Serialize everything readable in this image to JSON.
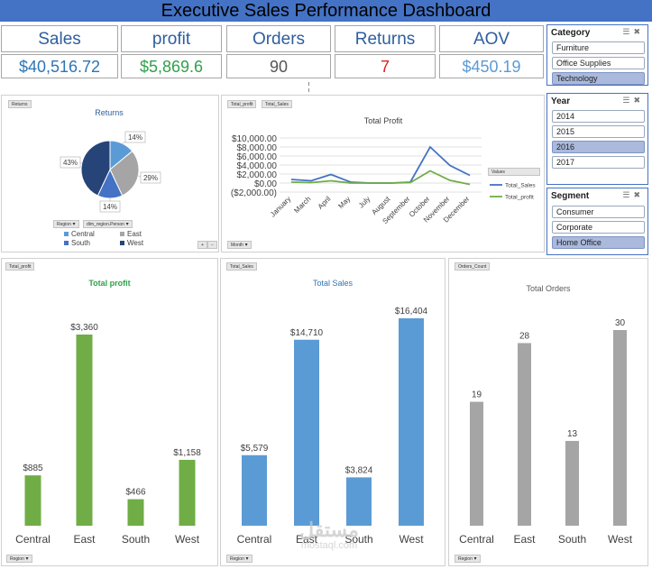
{
  "title": "Executive Sales Performance Dashboard",
  "kpis": {
    "sales": {
      "label": "Sales",
      "value": "$40,516.72",
      "color": "#2e75b6"
    },
    "profit": {
      "label": "profit",
      "value": "$5,869.6",
      "color": "#2fa14a"
    },
    "orders": {
      "label": "Orders",
      "value": "90",
      "color": "#555555"
    },
    "returns": {
      "label": "Returns",
      "value": "7",
      "color": "#e0201b"
    },
    "aov": {
      "label": "AOV",
      "value": "$450.19",
      "color": "#5b9bd5"
    }
  },
  "slicers": {
    "category": {
      "title": "Category",
      "items": [
        "Furniture",
        "Office Supplies",
        "Technology"
      ],
      "selected": [
        2
      ]
    },
    "year": {
      "title": "Year",
      "items": [
        "2014",
        "2015",
        "2016",
        "2017"
      ],
      "selected": [
        2
      ]
    },
    "segment": {
      "title": "Segment",
      "items": [
        "Consumer",
        "Corporate",
        "Home Office"
      ],
      "selected": [
        2
      ]
    }
  },
  "returns_panel": {
    "tag": "Returns",
    "filter_region": "Region",
    "filter_person": "dim_region.Person"
  },
  "profit_trend_panel": {
    "tags": [
      "Total_profit",
      "Total_Sales"
    ],
    "legend_title": "Values",
    "filter_month": "Month"
  },
  "bottom_panels": {
    "profit": {
      "tag": "Total_profit",
      "filter": "Region"
    },
    "sales": {
      "tag": "Total_Sales",
      "filter": "Region"
    },
    "orders": {
      "tag": "Orders_Count",
      "filter": "Region"
    }
  },
  "watermark": {
    "arabic": "مستقل",
    "latin": "mostaql.com"
  },
  "chart_data": [
    {
      "type": "pie",
      "title": "Returns",
      "categories": [
        "Central",
        "East",
        "South",
        "West"
      ],
      "values": [
        14,
        29,
        14,
        43
      ],
      "data_labels": [
        "14%",
        "29%",
        "14%",
        "43%"
      ],
      "colors": [
        "#5b9bd5",
        "#a5a5a5",
        "#4472c4",
        "#264478"
      ],
      "legend": "bottom"
    },
    {
      "type": "line",
      "title": "Total Profit",
      "x": [
        "January",
        "March",
        "April",
        "May",
        "July",
        "August",
        "September",
        "October",
        "November",
        "December"
      ],
      "series": [
        {
          "name": "Total_Sales",
          "values": [
            800,
            500,
            1900,
            200,
            0,
            0,
            200,
            8000,
            3900,
            1700
          ],
          "color": "#4472c4"
        },
        {
          "name": "Total_profit",
          "values": [
            200,
            100,
            500,
            0,
            0,
            0,
            100,
            2700,
            600,
            -300
          ],
          "color": "#70ad47"
        }
      ],
      "y_ticks": [
        "$10,000.00",
        "$8,000.00",
        "$6,000.00",
        "$4,000.00",
        "$2,000.00",
        "$0.00",
        "($2,000.00)"
      ],
      "ylim": [
        -2000,
        10000
      ],
      "grid": true,
      "legend": "right"
    },
    {
      "type": "bar",
      "title": "Total profit",
      "categories": [
        "Central",
        "East",
        "South",
        "West"
      ],
      "values": [
        885,
        3360,
        466,
        1158
      ],
      "data_labels": [
        "$885",
        "$3,360",
        "$466",
        "$1,158"
      ],
      "color": "#70ad47",
      "title_color": "#2fa14a"
    },
    {
      "type": "bar",
      "title": "Total Sales",
      "categories": [
        "Central",
        "East",
        "South",
        "West"
      ],
      "values": [
        5579,
        14710,
        3824,
        16404
      ],
      "data_labels": [
        "$5,579",
        "$14,710",
        "$3,824",
        "$16,404"
      ],
      "color": "#5b9bd5",
      "title_color": "#2e75b6"
    },
    {
      "type": "bar",
      "title": "Total Orders",
      "categories": [
        "Central",
        "East",
        "South",
        "West"
      ],
      "values": [
        19,
        28,
        13,
        30
      ],
      "data_labels": [
        "19",
        "28",
        "13",
        "30"
      ],
      "color": "#a5a5a5",
      "title_color": "#595959"
    }
  ]
}
